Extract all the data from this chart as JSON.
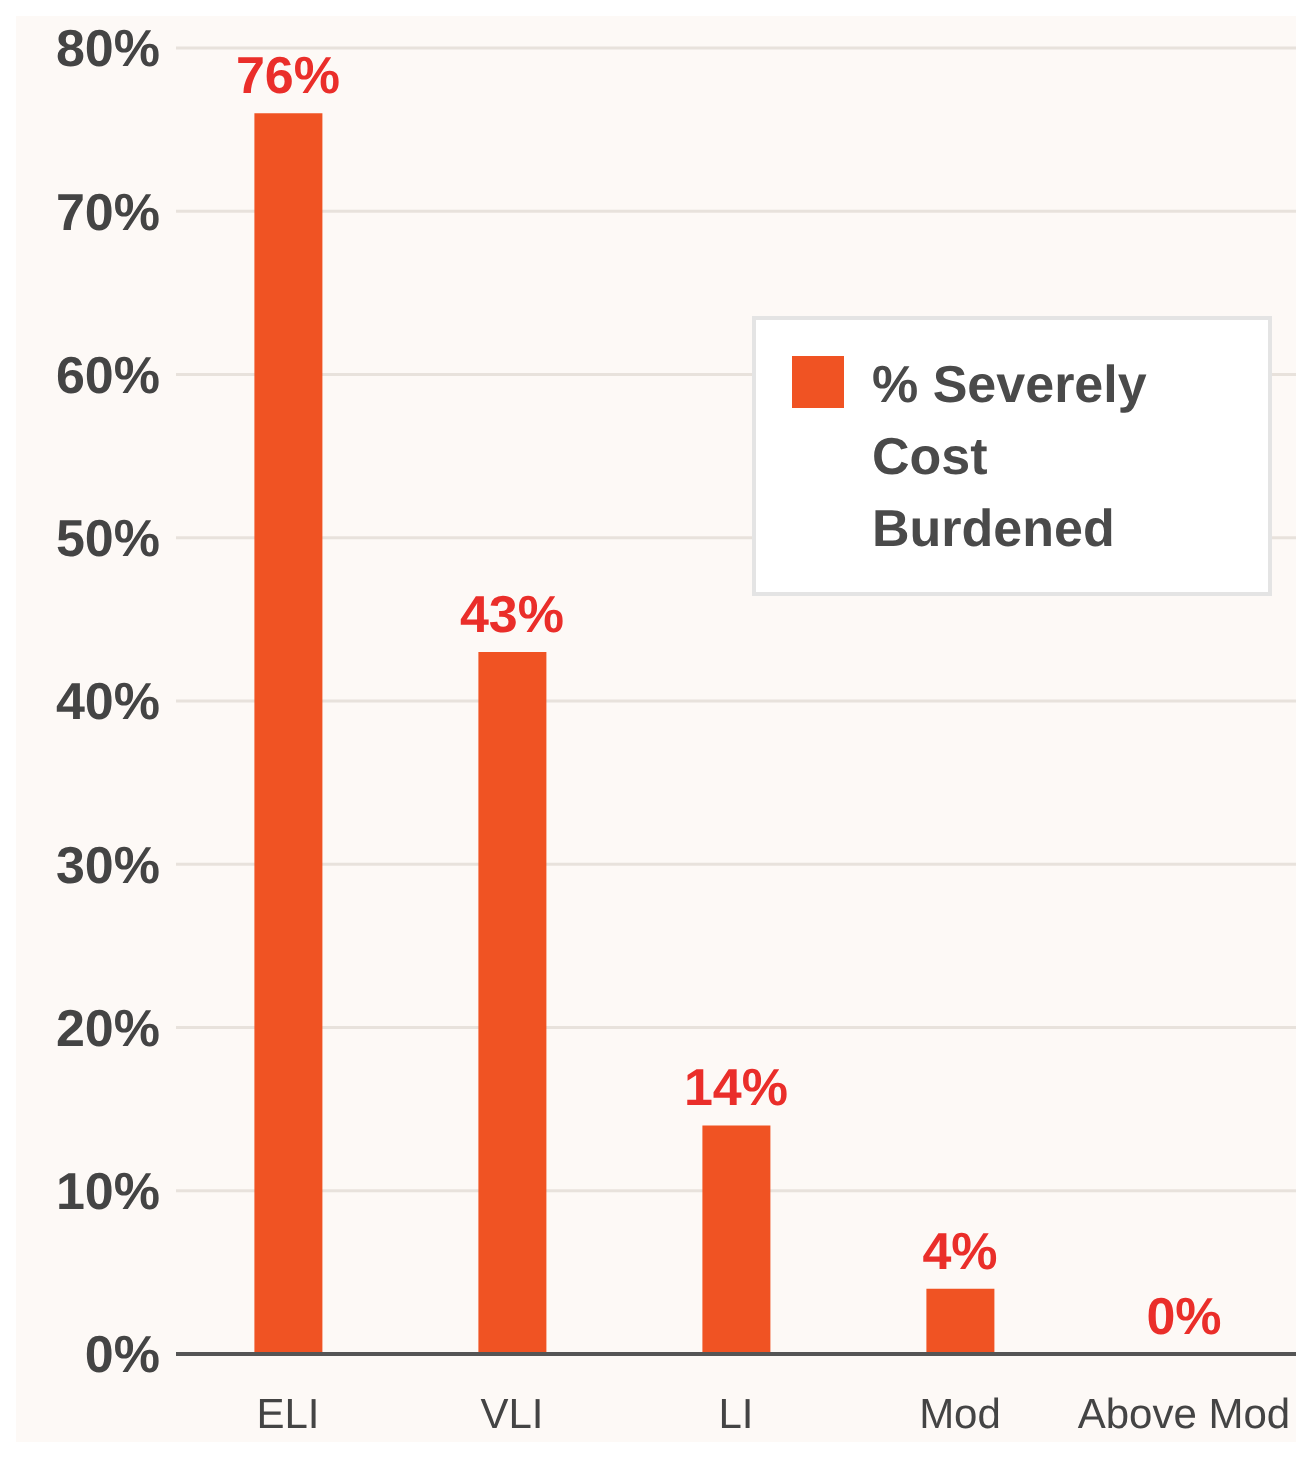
{
  "chart_data": {
    "type": "bar",
    "categories": [
      "ELI",
      "VLI",
      "LI",
      "Mod",
      "Above Mod"
    ],
    "series": [
      {
        "name": "% Severely Cost Burdened",
        "color": "#f05323",
        "values": [
          76,
          43,
          14,
          4,
          0
        ],
        "value_labels": [
          "76%",
          "43%",
          "14%",
          "4%",
          "0%"
        ]
      }
    ],
    "ylim": [
      0,
      80
    ],
    "yticks": [
      {
        "value": 0,
        "label": "0%"
      },
      {
        "value": 10,
        "label": "10%"
      },
      {
        "value": 20,
        "label": "20%"
      },
      {
        "value": 30,
        "label": "30%"
      },
      {
        "value": 40,
        "label": "40%"
      },
      {
        "value": 50,
        "label": "50%"
      },
      {
        "value": 60,
        "label": "60%"
      },
      {
        "value": 70,
        "label": "70%"
      },
      {
        "value": 80,
        "label": "80%"
      }
    ],
    "grid": "y",
    "legend": "top right"
  }
}
